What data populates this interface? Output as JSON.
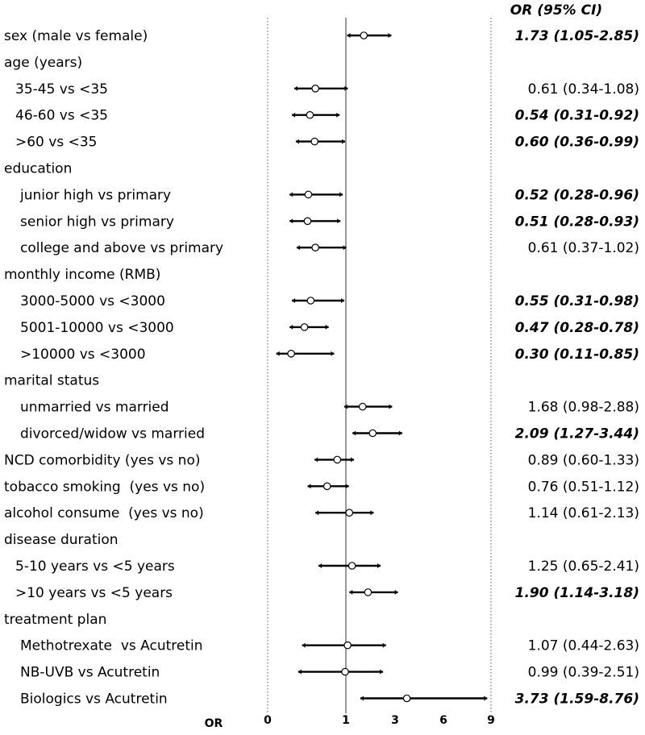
{
  "chart_data": {
    "type": "forest",
    "column_header": "OR (95% CI)",
    "xlabel": "OR",
    "x_ticks": [
      "0",
      "1",
      "3",
      "6",
      "9"
    ],
    "x_tick_values": [
      0,
      1,
      3,
      6,
      9
    ],
    "reference_line": 1,
    "rows": [
      {
        "label": "sex (male vs female)",
        "indent": 0,
        "or": 1.73,
        "lo": 1.05,
        "hi": 2.85,
        "text": "1.73 (1.05-2.85)",
        "significant": true
      },
      {
        "label": "age (years)",
        "indent": 0,
        "header": true
      },
      {
        "label": "35-45 vs <35",
        "indent": 1,
        "or": 0.61,
        "lo": 0.34,
        "hi": 1.08,
        "text": "0.61 (0.34-1.08)",
        "significant": false
      },
      {
        "label": "46-60 vs <35",
        "indent": 1,
        "or": 0.54,
        "lo": 0.31,
        "hi": 0.92,
        "text": "0.54 (0.31-0.92)",
        "significant": true
      },
      {
        "label": ">60 vs <35",
        "indent": 1,
        "or": 0.6,
        "lo": 0.36,
        "hi": 0.99,
        "text": "0.60 (0.36-0.99)",
        "significant": true
      },
      {
        "label": "education",
        "indent": 0,
        "header": true
      },
      {
        "label": "junior high vs primary",
        "indent": 2,
        "or": 0.52,
        "lo": 0.28,
        "hi": 0.96,
        "text": "0.52 (0.28-0.96)",
        "significant": true
      },
      {
        "label": "senior high vs primary",
        "indent": 2,
        "or": 0.51,
        "lo": 0.28,
        "hi": 0.93,
        "text": "0.51 (0.28-0.93)",
        "significant": true
      },
      {
        "label": "college and above vs primary",
        "indent": 2,
        "or": 0.61,
        "lo": 0.37,
        "hi": 1.02,
        "text": "0.61 (0.37-1.02)",
        "significant": false
      },
      {
        "label": "monthly income (RMB)",
        "indent": 0,
        "header": true
      },
      {
        "label": "3000-5000 vs <3000",
        "indent": 2,
        "or": 0.55,
        "lo": 0.31,
        "hi": 0.98,
        "text": "0.55 (0.31-0.98)",
        "significant": true
      },
      {
        "label": "5001-10000 vs <3000",
        "indent": 2,
        "or": 0.47,
        "lo": 0.28,
        "hi": 0.78,
        "text": "0.47 (0.28-0.78)",
        "significant": true
      },
      {
        "label": ">10000 vs <3000",
        "indent": 2,
        "or": 0.3,
        "lo": 0.11,
        "hi": 0.85,
        "text": "0.30 (0.11-0.85)",
        "significant": true
      },
      {
        "label": "marital status",
        "indent": 0,
        "header": true
      },
      {
        "label": "unmarried vs married",
        "indent": 2,
        "or": 1.68,
        "lo": 0.98,
        "hi": 2.88,
        "text": "1.68 (0.98-2.88)",
        "significant": false
      },
      {
        "label": "divorced/widow vs married",
        "indent": 2,
        "or": 2.09,
        "lo": 1.27,
        "hi": 3.44,
        "text": "2.09 (1.27-3.44)",
        "significant": true
      },
      {
        "label": "NCD comorbidity (yes vs no)",
        "indent": 0,
        "or": 0.89,
        "lo": 0.6,
        "hi": 1.33,
        "text": "0.89 (0.60-1.33)",
        "significant": false
      },
      {
        "label": "tobacco smoking  (yes vs no)",
        "indent": 0,
        "or": 0.76,
        "lo": 0.51,
        "hi": 1.12,
        "text": "0.76 (0.51-1.12)",
        "significant": false
      },
      {
        "label": "alcohol consume  (yes vs no)",
        "indent": 0,
        "or": 1.14,
        "lo": 0.61,
        "hi": 2.13,
        "text": "1.14 (0.61-2.13)",
        "significant": false
      },
      {
        "label": "disease duration",
        "indent": 0,
        "header": true
      },
      {
        "label": "5-10 years vs <5 years",
        "indent": 1,
        "or": 1.25,
        "lo": 0.65,
        "hi": 2.41,
        "text": "1.25 (0.65-2.41)",
        "significant": false
      },
      {
        "label": ">10 years vs <5 years",
        "indent": 1,
        "or": 1.9,
        "lo": 1.14,
        "hi": 3.18,
        "text": "1.90 (1.14-3.18)",
        "significant": true
      },
      {
        "label": "treatment plan",
        "indent": 0,
        "header": true
      },
      {
        "label": "Methotrexate  vs Acutretin",
        "indent": 2,
        "or": 1.07,
        "lo": 0.44,
        "hi": 2.63,
        "text": "1.07 (0.44-2.63)",
        "significant": false
      },
      {
        "label": "NB-UVB vs Acutretin",
        "indent": 2,
        "or": 0.99,
        "lo": 0.39,
        "hi": 2.51,
        "text": "0.99 (0.39-2.51)",
        "significant": false
      },
      {
        "label": "Biologics vs Acutretin",
        "indent": 2,
        "or": 3.73,
        "lo": 1.59,
        "hi": 8.76,
        "text": "3.73 (1.59-8.76)",
        "significant": true
      }
    ]
  }
}
